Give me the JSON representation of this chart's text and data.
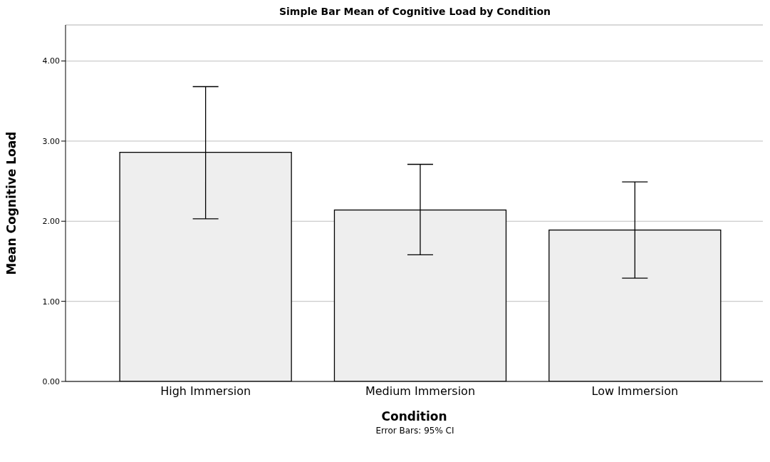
{
  "chart_data": {
    "type": "bar",
    "title": "Simple Bar Mean of Cognitive Load by Condition",
    "xlabel": "Condition",
    "ylabel": "Mean Cognitive Load",
    "categories": [
      "High Immersion",
      "Medium Immersion",
      "Low Immersion"
    ],
    "values": [
      2.86,
      2.14,
      1.89
    ],
    "errors": [
      [
        2.03,
        3.68
      ],
      [
        1.58,
        2.71
      ],
      [
        1.29,
        2.49
      ]
    ],
    "color": "#eeeeee",
    "ylim": [
      0,
      4.45
    ],
    "yticks": [
      {
        "value": 0,
        "label": "0.00"
      },
      {
        "value": 1,
        "label": "1.00"
      },
      {
        "value": 2,
        "label": "2.00"
      },
      {
        "value": 3,
        "label": "3.00"
      },
      {
        "value": 4,
        "label": "4.00"
      }
    ],
    "grid": "y",
    "legend": false,
    "annotations": [
      "Error Bars: 95% CI"
    ]
  }
}
